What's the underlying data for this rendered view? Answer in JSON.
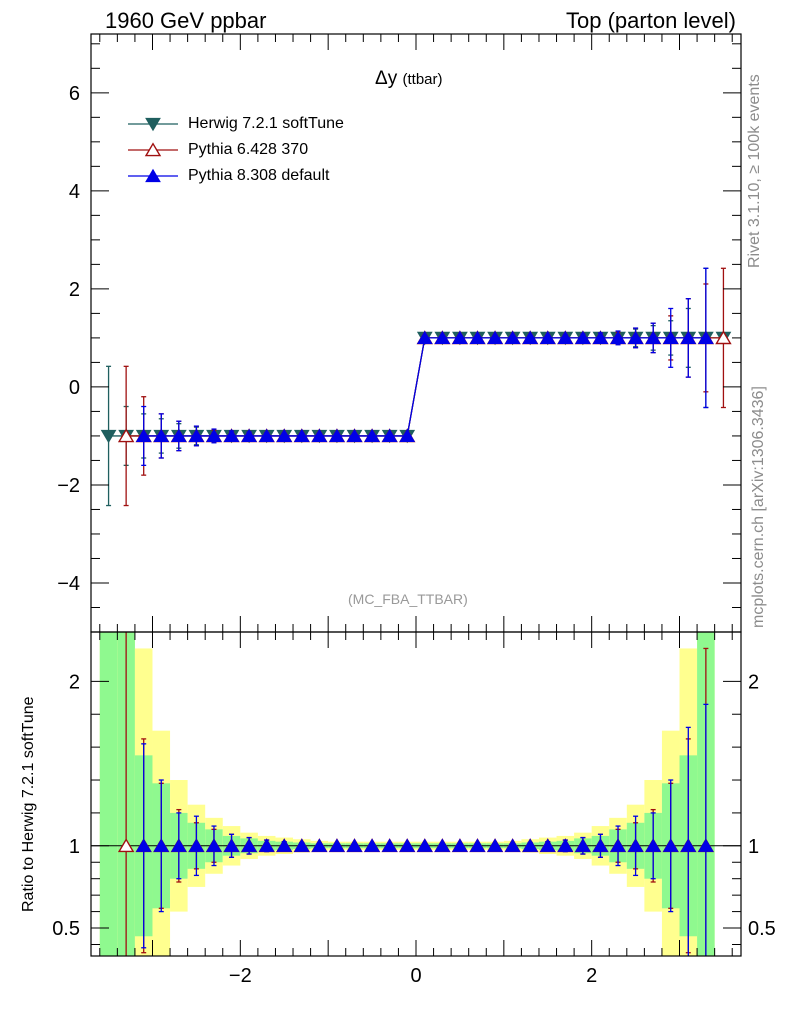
{
  "header": {
    "left": "1960 GeV ppbar",
    "right": "Top (parton level)"
  },
  "side_text": {
    "rivet": "Rivet 3.1.10, ≥ 100k events",
    "mcplots": "mcplots.cern.ch [arXiv:1306.3436]"
  },
  "colors": {
    "herwig": "#1f5f5f",
    "pythia6": "#a01010",
    "pythia8": "#0000e6",
    "band_green": "#8ff98f",
    "band_yellow": "#ffff8f"
  },
  "chart_data": [
    {
      "type": "line",
      "title_main": "Δy",
      "title_sub": "(ttbar)",
      "annotation": "(MC_FBA_TTBAR)",
      "xlim": [
        -3.7,
        3.7
      ],
      "ylim": [
        -5,
        7.2
      ],
      "yticks": [
        -4,
        -2,
        0,
        2,
        4,
        6
      ],
      "ytick_labels": [
        "−4",
        "−2",
        "0",
        "2",
        "4",
        "6"
      ],
      "legend": [
        "Herwig 7.2.1 softTune",
        "Pythia 6.428 370",
        "Pythia 8.308 default"
      ],
      "legend_position": "top-left",
      "x": [
        -3.5,
        -3.3,
        -3.1,
        -2.9,
        -2.7,
        -2.5,
        -2.3,
        -2.1,
        -1.9,
        -1.7,
        -1.5,
        -1.3,
        -1.1,
        -0.9,
        -0.7,
        -0.5,
        -0.3,
        -0.1,
        0.1,
        0.3,
        0.5,
        0.7,
        0.9,
        1.1,
        1.3,
        1.5,
        1.7,
        1.9,
        2.1,
        2.3,
        2.5,
        2.7,
        2.9,
        3.1,
        3.3,
        3.5
      ],
      "series": [
        {
          "name": "Herwig 7.2.1 softTune",
          "marker": "triangle-down",
          "values": [
            -1,
            -1,
            -1,
            -1,
            -1,
            -1,
            -1,
            -1,
            -1,
            -1,
            -1,
            -1,
            -1,
            -1,
            -1,
            -1,
            -1,
            -1,
            1,
            1,
            1,
            1,
            1,
            1,
            1,
            1,
            1,
            1,
            1,
            1,
            1,
            1,
            1,
            1,
            1,
            1
          ],
          "errors": [
            1.42,
            0.6,
            0.45,
            0.35,
            0.25,
            0.18,
            0.12,
            0.1,
            0.08,
            0.06,
            0.05,
            0.04,
            0.03,
            0.03,
            0.03,
            0.03,
            0.03,
            0.03,
            0.03,
            0.03,
            0.03,
            0.03,
            0.03,
            0.03,
            0.04,
            0.05,
            0.06,
            0.08,
            0.1,
            0.12,
            0.18,
            0.25,
            0.35,
            0.6,
            1.42,
            0
          ]
        },
        {
          "name": "Pythia 6.428 370",
          "marker": "triangle-up-open",
          "values": [
            null,
            -1,
            -1,
            -1,
            -1,
            -1,
            -1,
            -1,
            -1,
            -1,
            -1,
            -1,
            -1,
            -1,
            -1,
            -1,
            -1,
            -1,
            1,
            1,
            1,
            1,
            1,
            1,
            1,
            1,
            1,
            1,
            1,
            1,
            1,
            1,
            1,
            1,
            1,
            1
          ],
          "errors": [
            0,
            1.42,
            0.8,
            0.45,
            0.3,
            0.2,
            0.12,
            0.1,
            0.08,
            0.06,
            0.05,
            0.04,
            0.03,
            0.03,
            0.03,
            0.03,
            0.03,
            0.03,
            0.03,
            0.03,
            0.03,
            0.03,
            0.03,
            0.03,
            0.04,
            0.05,
            0.06,
            0.08,
            0.1,
            0.12,
            0.2,
            0.3,
            0.45,
            0.8,
            1.1,
            1.42
          ]
        },
        {
          "name": "Pythia 8.308 default",
          "marker": "triangle-up",
          "values": [
            null,
            null,
            -1,
            -1,
            -1,
            -1,
            -1,
            -1,
            -1,
            -1,
            -1,
            -1,
            -1,
            -1,
            -1,
            -1,
            -1,
            -1,
            1,
            1,
            1,
            1,
            1,
            1,
            1,
            1,
            1,
            1,
            1,
            1,
            1,
            1,
            1,
            1,
            1,
            null
          ],
          "errors": [
            0,
            0,
            0.6,
            0.45,
            0.3,
            0.2,
            0.14,
            0.1,
            0.08,
            0.06,
            0.05,
            0.04,
            0.03,
            0.03,
            0.03,
            0.03,
            0.03,
            0.03,
            0.03,
            0.03,
            0.03,
            0.03,
            0.03,
            0.03,
            0.04,
            0.05,
            0.06,
            0.08,
            0.1,
            0.14,
            0.2,
            0.3,
            0.6,
            0.8,
            1.42,
            0
          ]
        }
      ]
    },
    {
      "type": "line",
      "ylabel": "Ratio to Herwig 7.2.1 softTune",
      "xlim": [
        -3.7,
        3.7
      ],
      "ylim": [
        0.33,
        2.3
      ],
      "xticks": [
        -2,
        0,
        2
      ],
      "xtick_labels": [
        "−2",
        "0",
        "2"
      ],
      "yticks": [
        0.5,
        1,
        2
      ],
      "ytick_labels": [
        "0.5",
        "1",
        "2"
      ],
      "x": [
        -3.5,
        -3.3,
        -3.1,
        -2.9,
        -2.7,
        -2.5,
        -2.3,
        -2.1,
        -1.9,
        -1.7,
        -1.5,
        -1.3,
        -1.1,
        -0.9,
        -0.7,
        -0.5,
        -0.3,
        -0.1,
        0.1,
        0.3,
        0.5,
        0.7,
        0.9,
        1.1,
        1.3,
        1.5,
        1.7,
        1.9,
        2.1,
        2.3,
        2.5,
        2.7,
        2.9,
        3.1,
        3.3,
        3.5
      ],
      "band_green": [
        1.5,
        1.5,
        0.55,
        0.38,
        0.2,
        0.14,
        0.1,
        0.06,
        0.045,
        0.03,
        0.025,
        0.02,
        0.015,
        0.015,
        0.015,
        0.015,
        0.015,
        0.015,
        0.015,
        0.015,
        0.015,
        0.015,
        0.015,
        0.015,
        0.02,
        0.025,
        0.03,
        0.045,
        0.06,
        0.1,
        0.14,
        0.2,
        0.38,
        0.55,
        1.5,
        0
      ],
      "band_yellow": [
        1.5,
        1.5,
        1.2,
        0.7,
        0.4,
        0.25,
        0.17,
        0.12,
        0.08,
        0.06,
        0.05,
        0.04,
        0.03,
        0.025,
        0.025,
        0.025,
        0.025,
        0.025,
        0.025,
        0.025,
        0.025,
        0.025,
        0.025,
        0.03,
        0.04,
        0.05,
        0.06,
        0.08,
        0.12,
        0.17,
        0.25,
        0.4,
        0.7,
        1.2,
        1.5,
        0
      ],
      "series": [
        {
          "name": "Pythia 6.428 370",
          "marker": "triangle-up-open",
          "values": [
            null,
            1,
            1,
            1,
            1,
            1,
            1,
            1,
            1,
            1,
            1,
            1,
            1,
            1,
            1,
            1,
            1,
            1,
            1,
            1,
            1,
            1,
            1,
            1,
            1,
            1,
            1,
            1,
            1,
            1,
            1,
            1,
            1,
            1,
            1,
            null
          ],
          "errors": [
            0,
            1.5,
            0.65,
            0.38,
            0.22,
            0.14,
            0.1,
            0.07,
            0.05,
            0.035,
            0.025,
            0.02,
            0.015,
            0.015,
            0.015,
            0.015,
            0.015,
            0.015,
            0.015,
            0.015,
            0.015,
            0.015,
            0.015,
            0.015,
            0.02,
            0.025,
            0.035,
            0.05,
            0.07,
            0.1,
            0.14,
            0.22,
            0.38,
            0.65,
            1.2,
            0
          ]
        },
        {
          "name": "Pythia 8.308 default",
          "marker": "triangle-up",
          "values": [
            null,
            null,
            1,
            1,
            1,
            1,
            1,
            1,
            1,
            1,
            1,
            1,
            1,
            1,
            1,
            1,
            1,
            1,
            1,
            1,
            1,
            1,
            1,
            1,
            1,
            1,
            1,
            1,
            1,
            1,
            1,
            1,
            1,
            1,
            1,
            null
          ],
          "errors": [
            0,
            0,
            0.62,
            0.4,
            0.2,
            0.18,
            0.12,
            0.07,
            0.05,
            0.035,
            0.025,
            0.02,
            0.015,
            0.015,
            0.015,
            0.015,
            0.015,
            0.015,
            0.015,
            0.015,
            0.015,
            0.015,
            0.015,
            0.015,
            0.02,
            0.025,
            0.035,
            0.05,
            0.07,
            0.12,
            0.18,
            0.2,
            0.4,
            0.72,
            0.86,
            0
          ]
        }
      ]
    }
  ]
}
